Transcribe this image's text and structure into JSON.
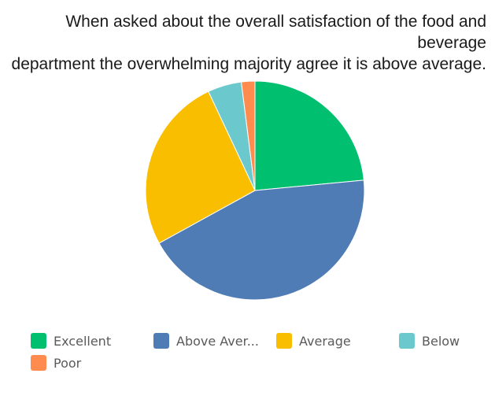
{
  "chart_data": {
    "type": "pie",
    "title": "When asked about the overall satisfaction of the food and beverage department the overwhelming majority agree it is above average.",
    "title_lines": [
      "When asked about the overall satisfaction of the food and beverage",
      "department the overwhelming majority agree it is above average."
    ],
    "categories": [
      "Excellent",
      "Above Aver...",
      "Average",
      "Below",
      "Poor"
    ],
    "values": [
      23.5,
      43.5,
      26.0,
      5.0,
      2.0
    ],
    "colors": [
      "#00bf6f",
      "#507cb6",
      "#f9be00",
      "#6bc8cd",
      "#ff8b4f"
    ],
    "legend_position": "bottom"
  }
}
